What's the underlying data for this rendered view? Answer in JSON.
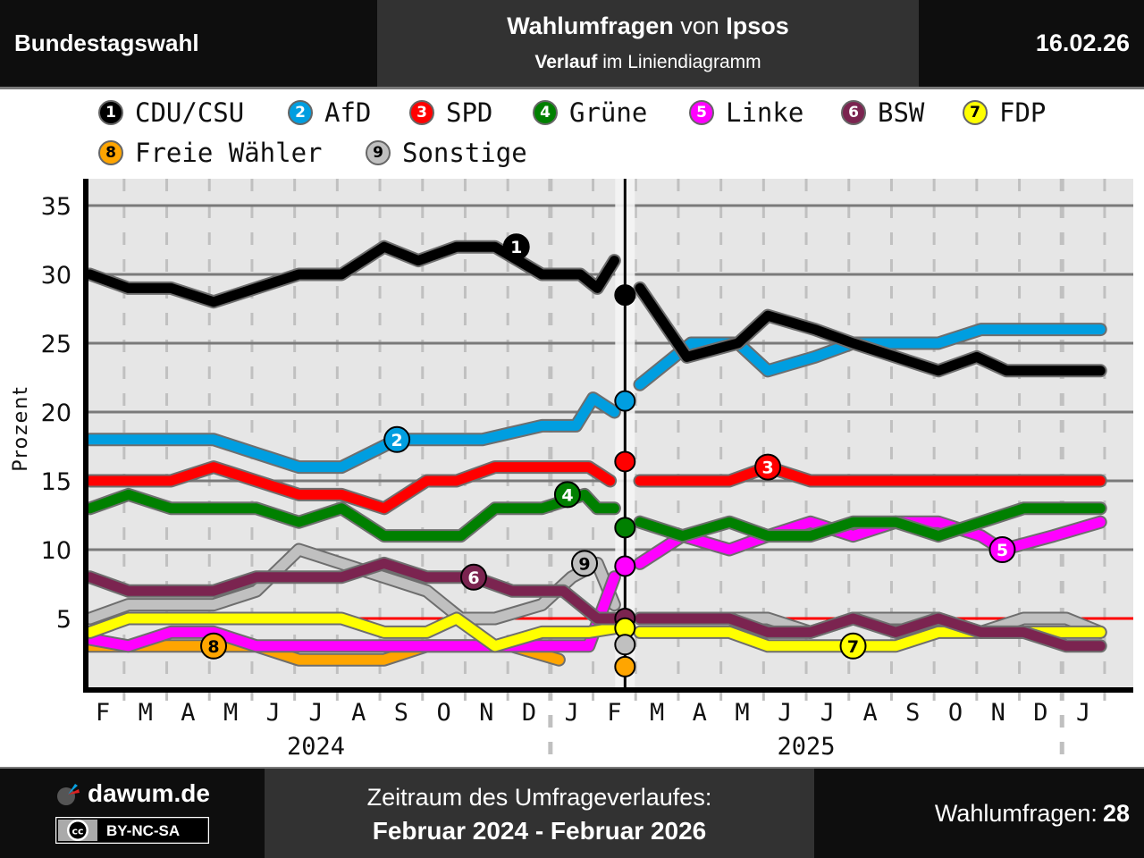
{
  "header": {
    "left_title": "Bundestagswahl",
    "title_bold1": "Wahlumfragen",
    "title_mid": " von ",
    "title_bold2": "Ipsos",
    "subtitle_bold": "Verlauf",
    "subtitle_rest": " im Liniendiagramm",
    "date": "16.02.26"
  },
  "legend": [
    {
      "num": "1",
      "label": "CDU/CSU",
      "color": "#000000",
      "text_color": "#ffffff"
    },
    {
      "num": "2",
      "label": "AfD",
      "color": "#009ee0",
      "text_color": "#ffffff"
    },
    {
      "num": "3",
      "label": "SPD",
      "color": "#ff0000",
      "text_color": "#ffffff"
    },
    {
      "num": "4",
      "label": "Grüne",
      "color": "#008000",
      "text_color": "#ffffff"
    },
    {
      "num": "5",
      "label": "Linke",
      "color": "#ff00ff",
      "text_color": "#ffffff"
    },
    {
      "num": "6",
      "label": "BSW",
      "color": "#7b2450",
      "text_color": "#ffffff"
    },
    {
      "num": "7",
      "label": "FDP",
      "color": "#ffff00",
      "text_color": "#000000"
    },
    {
      "num": "8",
      "label": "Freie Wähler",
      "color": "#ffa500",
      "text_color": "#000000"
    },
    {
      "num": "9",
      "label": "Sonstige",
      "color": "#c0c0c0",
      "text_color": "#000000"
    }
  ],
  "chart_data": {
    "type": "line",
    "title": "Wahlumfragen von Ipsos – Verlauf im Liniendiagramm",
    "xlabel": "",
    "ylabel": "Prozent",
    "ylim": [
      0,
      37
    ],
    "yticks": [
      5,
      10,
      15,
      20,
      25,
      30,
      35
    ],
    "grid": true,
    "threshold_line": 5,
    "month_ticks": [
      "F",
      "M",
      "A",
      "M",
      "J",
      "J",
      "A",
      "S",
      "O",
      "N",
      "D",
      "J",
      "F",
      "M",
      "A",
      "M",
      "J",
      "J",
      "A",
      "S",
      "O",
      "N",
      "D",
      "J"
    ],
    "year_labels": [
      {
        "label": "2024",
        "at_month_index": 5
      },
      {
        "label": "2025",
        "at_month_index": 16.5
      }
    ],
    "election_marker_month_index": 12.25,
    "election_results": [
      {
        "party": "CDU/CSU",
        "value": 28.5
      },
      {
        "party": "AfD",
        "value": 20.8
      },
      {
        "party": "SPD",
        "value": 16.4
      },
      {
        "party": "Grüne",
        "value": 11.6
      },
      {
        "party": "Linke",
        "value": 8.8
      },
      {
        "party": "BSW",
        "value": 5.0
      },
      {
        "party": "FDP",
        "value": 4.3
      },
      {
        "party": "Sonstige",
        "value": 3.1
      },
      {
        "party": "Freie Wähler",
        "value": 1.5
      }
    ],
    "series": [
      {
        "name": "CDU/CSU",
        "label_at": 9.7,
        "before": [
          [
            -0.3,
            30
          ],
          [
            0.6,
            29
          ],
          [
            1.6,
            29
          ],
          [
            2.6,
            28
          ],
          [
            3.6,
            29
          ],
          [
            4.6,
            30
          ],
          [
            5.6,
            30
          ],
          [
            6.6,
            32
          ],
          [
            7.4,
            31
          ],
          [
            8.3,
            32
          ],
          [
            9.2,
            32
          ],
          [
            10.3,
            30
          ],
          [
            11.2,
            30
          ],
          [
            11.6,
            29
          ],
          [
            12.0,
            31
          ]
        ],
        "after": [
          [
            12.6,
            29
          ],
          [
            13.7,
            24
          ],
          [
            14.9,
            25
          ],
          [
            15.6,
            27
          ],
          [
            16.7,
            26
          ],
          [
            17.6,
            25
          ],
          [
            18.6,
            24
          ],
          [
            19.6,
            23
          ],
          [
            20.5,
            24
          ],
          [
            21.2,
            23
          ],
          [
            22.3,
            23
          ],
          [
            23.4,
            23
          ]
        ]
      },
      {
        "name": "AfD",
        "label_at": 6.9,
        "before": [
          [
            -0.3,
            18
          ],
          [
            0.6,
            18
          ],
          [
            1.6,
            18
          ],
          [
            2.6,
            18
          ],
          [
            3.6,
            17
          ],
          [
            4.6,
            16
          ],
          [
            5.6,
            16
          ],
          [
            6.9,
            18
          ],
          [
            7.9,
            18
          ],
          [
            8.9,
            18
          ],
          [
            10.3,
            19
          ],
          [
            11.1,
            19
          ],
          [
            11.5,
            21
          ],
          [
            12.0,
            20
          ]
        ],
        "after": [
          [
            12.6,
            22
          ],
          [
            13.8,
            25
          ],
          [
            14.9,
            25
          ],
          [
            15.6,
            23
          ],
          [
            16.7,
            24
          ],
          [
            17.6,
            25
          ],
          [
            18.6,
            25
          ],
          [
            19.6,
            25
          ],
          [
            20.6,
            26
          ],
          [
            21.6,
            26
          ],
          [
            22.6,
            26
          ],
          [
            23.4,
            26
          ]
        ]
      },
      {
        "name": "SPD",
        "label_at": 15.6,
        "before": [
          [
            -0.3,
            15
          ],
          [
            0.6,
            15
          ],
          [
            1.6,
            15
          ],
          [
            2.6,
            16
          ],
          [
            3.6,
            15
          ],
          [
            4.6,
            14
          ],
          [
            5.6,
            14
          ],
          [
            6.6,
            13
          ],
          [
            7.6,
            15
          ],
          [
            8.3,
            15
          ],
          [
            9.2,
            16
          ],
          [
            10.3,
            16
          ],
          [
            11.4,
            16
          ],
          [
            11.9,
            15
          ]
        ],
        "after": [
          [
            12.6,
            15
          ],
          [
            13.6,
            15
          ],
          [
            14.7,
            15
          ],
          [
            15.6,
            16
          ],
          [
            16.6,
            15
          ],
          [
            17.6,
            15
          ],
          [
            18.6,
            15
          ],
          [
            19.6,
            15
          ],
          [
            20.6,
            15
          ],
          [
            21.6,
            15
          ],
          [
            22.6,
            15
          ],
          [
            23.4,
            15
          ]
        ]
      },
      {
        "name": "Grüne",
        "label_at": 10.9,
        "before": [
          [
            -0.3,
            13
          ],
          [
            0.6,
            14
          ],
          [
            1.6,
            13
          ],
          [
            2.6,
            13
          ],
          [
            3.6,
            13
          ],
          [
            4.6,
            12
          ],
          [
            5.6,
            13
          ],
          [
            6.6,
            11
          ],
          [
            7.6,
            11
          ],
          [
            8.4,
            11
          ],
          [
            9.2,
            13
          ],
          [
            10.3,
            13
          ],
          [
            11.3,
            14
          ],
          [
            11.6,
            13
          ],
          [
            12.0,
            13
          ]
        ],
        "after": [
          [
            12.6,
            12
          ],
          [
            13.6,
            11
          ],
          [
            14.7,
            12
          ],
          [
            15.6,
            11
          ],
          [
            16.6,
            11
          ],
          [
            17.6,
            12
          ],
          [
            18.6,
            12
          ],
          [
            19.6,
            11
          ],
          [
            20.6,
            12
          ],
          [
            21.6,
            13
          ],
          [
            22.6,
            13
          ],
          [
            23.4,
            13
          ]
        ]
      },
      {
        "name": "Linke",
        "label_at": 21.1,
        "before": [
          [
            -0.3,
            3.5
          ],
          [
            0.6,
            3
          ],
          [
            1.6,
            4
          ],
          [
            2.6,
            4
          ],
          [
            3.6,
            3
          ],
          [
            4.6,
            3
          ],
          [
            5.6,
            3
          ],
          [
            6.6,
            3
          ],
          [
            7.6,
            3
          ],
          [
            8.6,
            3
          ],
          [
            9.2,
            3
          ],
          [
            10.3,
            3
          ],
          [
            11.4,
            3
          ],
          [
            12.0,
            8
          ]
        ],
        "after": [
          [
            12.6,
            9
          ],
          [
            13.6,
            11
          ],
          [
            14.7,
            10
          ],
          [
            15.6,
            11
          ],
          [
            16.6,
            12
          ],
          [
            17.6,
            11
          ],
          [
            18.6,
            12
          ],
          [
            19.6,
            12
          ],
          [
            20.6,
            11
          ],
          [
            21.1,
            10
          ],
          [
            22.3,
            11
          ],
          [
            23.4,
            12
          ]
        ]
      },
      {
        "name": "BSW",
        "label_at": 8.7,
        "before": [
          [
            -0.3,
            8
          ],
          [
            0.6,
            7
          ],
          [
            1.6,
            7
          ],
          [
            2.6,
            7
          ],
          [
            3.6,
            8
          ],
          [
            4.6,
            8
          ],
          [
            5.6,
            8
          ],
          [
            6.6,
            9
          ],
          [
            7.6,
            8
          ],
          [
            8.7,
            8
          ],
          [
            9.6,
            7
          ],
          [
            10.8,
            7
          ],
          [
            11.6,
            5
          ],
          [
            12.0,
            5
          ]
        ],
        "after": [
          [
            12.6,
            5
          ],
          [
            13.6,
            5
          ],
          [
            14.7,
            5
          ],
          [
            15.6,
            4
          ],
          [
            16.6,
            4
          ],
          [
            17.6,
            5
          ],
          [
            18.6,
            4
          ],
          [
            19.6,
            5
          ],
          [
            20.6,
            4
          ],
          [
            21.6,
            4
          ],
          [
            22.6,
            3
          ],
          [
            23.4,
            3
          ]
        ]
      },
      {
        "name": "FDP",
        "label_at": 17.6,
        "before": [
          [
            -0.3,
            4
          ],
          [
            0.6,
            5
          ],
          [
            1.6,
            5
          ],
          [
            2.6,
            5
          ],
          [
            3.6,
            5
          ],
          [
            4.6,
            5
          ],
          [
            5.6,
            5
          ],
          [
            6.6,
            4
          ],
          [
            7.6,
            4
          ],
          [
            8.3,
            5
          ],
          [
            9.2,
            3
          ],
          [
            10.3,
            4
          ],
          [
            11.4,
            4
          ],
          [
            12.0,
            4.3
          ]
        ],
        "after": [
          [
            12.6,
            4
          ],
          [
            13.6,
            4
          ],
          [
            14.7,
            4
          ],
          [
            15.6,
            3
          ],
          [
            16.6,
            3
          ],
          [
            17.6,
            3
          ],
          [
            18.6,
            3
          ],
          [
            19.6,
            4
          ],
          [
            20.6,
            4
          ],
          [
            21.6,
            4
          ],
          [
            22.6,
            4
          ],
          [
            23.4,
            4
          ]
        ]
      },
      {
        "name": "Freie Wähler",
        "label_at": 2.6,
        "before": [
          [
            -0.3,
            3
          ],
          [
            0.6,
            3
          ],
          [
            1.6,
            3
          ],
          [
            2.6,
            3
          ],
          [
            3.6,
            3
          ],
          [
            4.6,
            2
          ],
          [
            5.6,
            2
          ],
          [
            6.6,
            2
          ],
          [
            7.6,
            3
          ],
          [
            8.6,
            3
          ],
          [
            9.6,
            3
          ],
          [
            10.7,
            2
          ]
        ],
        "after": []
      },
      {
        "name": "Sonstige",
        "label_at": 11.3,
        "before": [
          [
            -0.3,
            5
          ],
          [
            0.6,
            6
          ],
          [
            1.6,
            6
          ],
          [
            2.6,
            6
          ],
          [
            3.6,
            7
          ],
          [
            4.6,
            10
          ],
          [
            5.6,
            9
          ],
          [
            6.6,
            8
          ],
          [
            7.6,
            7
          ],
          [
            8.4,
            5
          ],
          [
            9.2,
            5
          ],
          [
            10.3,
            6
          ],
          [
            11.0,
            8
          ],
          [
            11.6,
            9
          ],
          [
            12.0,
            6
          ]
        ],
        "after": [
          [
            12.6,
            5
          ],
          [
            13.6,
            5
          ],
          [
            14.7,
            5
          ],
          [
            15.6,
            5
          ],
          [
            16.6,
            4
          ],
          [
            17.6,
            5
          ],
          [
            18.6,
            5
          ],
          [
            19.6,
            5
          ],
          [
            20.6,
            4
          ],
          [
            21.6,
            5
          ],
          [
            22.6,
            5
          ],
          [
            23.4,
            4
          ]
        ]
      }
    ]
  },
  "footer": {
    "brand": "dawum.de",
    "license": "BY-NC-SA",
    "period_label": "Zeitraum des Umfrageverlaufes:",
    "period_value": "Februar 2024 - Februar 2026",
    "count_label": "Wahlumfragen: ",
    "count_value": "28"
  }
}
